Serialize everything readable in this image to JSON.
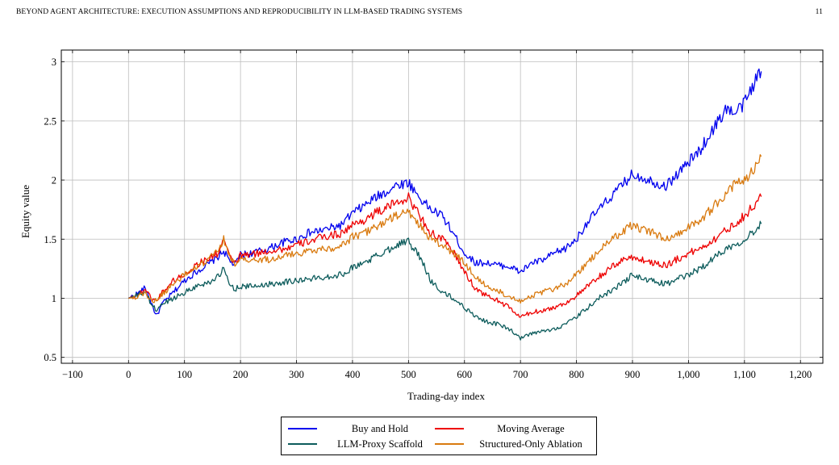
{
  "header": {
    "title": "BEYOND AGENT ARCHITECTURE: EXECUTION ASSUMPTIONS AND REPRODUCIBILITY IN LLM-BASED TRADING SYSTEMS",
    "page_number": "11"
  },
  "chart_data": {
    "type": "line",
    "title": "",
    "xlabel": "Trading-day index",
    "ylabel": "Equity value",
    "xlim": [
      -120,
      1240
    ],
    "ylim": [
      0.45,
      3.1
    ],
    "xticks": [
      -100,
      0,
      100,
      200,
      300,
      400,
      500,
      600,
      700,
      800,
      900,
      1000,
      1100,
      1200
    ],
    "xtick_labels": [
      "−100",
      "0",
      "100",
      "200",
      "300",
      "400",
      "500",
      "600",
      "700",
      "800",
      "900",
      "1,000",
      "1,100",
      "1,200"
    ],
    "yticks": [
      0.5,
      1,
      1.5,
      2,
      2.5,
      3
    ],
    "ytick_labels": [
      "0.5",
      "1",
      "1.5",
      "2",
      "2.5",
      "3"
    ],
    "grid": true,
    "legend_position": "bottom-outside",
    "series": [
      {
        "name": "Buy and Hold",
        "color": "#0000ee",
        "x": [
          0,
          20,
          30,
          40,
          50,
          60,
          80,
          100,
          120,
          140,
          160,
          170,
          180,
          190,
          200,
          220,
          250,
          280,
          300,
          320,
          350,
          380,
          400,
          420,
          440,
          460,
          480,
          500,
          520,
          540,
          560,
          580,
          600,
          620,
          640,
          660,
          680,
          700,
          720,
          740,
          760,
          780,
          800,
          820,
          840,
          860,
          880,
          900,
          920,
          940,
          960,
          980,
          1000,
          1020,
          1040,
          1060,
          1070,
          1080,
          1100,
          1110,
          1120,
          1130
        ],
        "y": [
          1.0,
          1.05,
          1.09,
          0.97,
          0.85,
          0.95,
          1.05,
          1.15,
          1.22,
          1.28,
          1.35,
          1.4,
          1.32,
          1.28,
          1.37,
          1.38,
          1.42,
          1.48,
          1.5,
          1.55,
          1.58,
          1.62,
          1.72,
          1.78,
          1.85,
          1.9,
          1.96,
          1.98,
          1.85,
          1.75,
          1.7,
          1.55,
          1.38,
          1.3,
          1.3,
          1.28,
          1.27,
          1.22,
          1.3,
          1.32,
          1.38,
          1.42,
          1.5,
          1.65,
          1.75,
          1.85,
          1.95,
          2.05,
          2.02,
          1.98,
          1.95,
          2.05,
          2.15,
          2.25,
          2.4,
          2.55,
          2.62,
          2.55,
          2.65,
          2.75,
          2.85,
          2.92
        ]
      },
      {
        "name": "Moving Average",
        "color": "#ee0000",
        "x": [
          0,
          20,
          30,
          40,
          50,
          60,
          80,
          100,
          120,
          140,
          160,
          170,
          180,
          190,
          200,
          220,
          250,
          280,
          300,
          320,
          350,
          380,
          400,
          420,
          440,
          460,
          480,
          500,
          520,
          540,
          560,
          580,
          600,
          620,
          640,
          660,
          680,
          700,
          720,
          740,
          760,
          780,
          800,
          820,
          840,
          860,
          880,
          900,
          920,
          940,
          960,
          980,
          1000,
          1020,
          1040,
          1060,
          1080,
          1100,
          1120,
          1130
        ],
        "y": [
          1.0,
          1.04,
          1.08,
          1.0,
          0.98,
          1.05,
          1.15,
          1.2,
          1.28,
          1.33,
          1.38,
          1.5,
          1.35,
          1.3,
          1.36,
          1.37,
          1.4,
          1.42,
          1.45,
          1.48,
          1.52,
          1.55,
          1.62,
          1.66,
          1.72,
          1.76,
          1.82,
          1.85,
          1.7,
          1.55,
          1.5,
          1.4,
          1.22,
          1.08,
          1.02,
          0.98,
          0.92,
          0.84,
          0.88,
          0.9,
          0.92,
          0.96,
          1.02,
          1.1,
          1.18,
          1.25,
          1.32,
          1.35,
          1.32,
          1.3,
          1.28,
          1.33,
          1.38,
          1.42,
          1.48,
          1.55,
          1.62,
          1.7,
          1.8,
          1.86
        ]
      },
      {
        "name": "LLM-Proxy Scaffold",
        "color": "#0d5c5c",
        "x": [
          0,
          20,
          30,
          40,
          50,
          60,
          80,
          100,
          120,
          140,
          160,
          170,
          180,
          190,
          200,
          220,
          250,
          280,
          300,
          320,
          350,
          380,
          400,
          420,
          440,
          460,
          480,
          500,
          520,
          540,
          560,
          580,
          600,
          620,
          640,
          660,
          680,
          700,
          720,
          740,
          760,
          780,
          800,
          820,
          840,
          860,
          880,
          900,
          920,
          940,
          960,
          980,
          1000,
          1020,
          1040,
          1060,
          1080,
          1100,
          1120,
          1130
        ],
        "y": [
          1.0,
          1.03,
          1.06,
          0.95,
          0.9,
          0.95,
          1.0,
          1.05,
          1.1,
          1.13,
          1.18,
          1.25,
          1.12,
          1.08,
          1.1,
          1.1,
          1.12,
          1.14,
          1.15,
          1.16,
          1.18,
          1.2,
          1.26,
          1.3,
          1.35,
          1.4,
          1.46,
          1.48,
          1.35,
          1.15,
          1.05,
          1.0,
          0.92,
          0.85,
          0.8,
          0.78,
          0.74,
          0.66,
          0.7,
          0.72,
          0.74,
          0.78,
          0.84,
          0.92,
          1.0,
          1.06,
          1.12,
          1.2,
          1.16,
          1.14,
          1.12,
          1.16,
          1.2,
          1.25,
          1.32,
          1.4,
          1.45,
          1.5,
          1.58,
          1.63
        ]
      },
      {
        "name": "Structured-Only Ablation",
        "color": "#d97a0f",
        "x": [
          0,
          20,
          30,
          40,
          50,
          60,
          80,
          100,
          120,
          140,
          160,
          170,
          180,
          190,
          200,
          220,
          250,
          280,
          300,
          320,
          350,
          380,
          400,
          420,
          440,
          460,
          480,
          500,
          520,
          540,
          560,
          580,
          600,
          620,
          640,
          660,
          680,
          700,
          720,
          740,
          760,
          780,
          800,
          820,
          840,
          860,
          880,
          900,
          920,
          940,
          960,
          980,
          1000,
          1020,
          1040,
          1060,
          1080,
          1100,
          1120,
          1130
        ],
        "y": [
          1.0,
          1.02,
          1.05,
          0.98,
          0.98,
          1.03,
          1.12,
          1.2,
          1.25,
          1.32,
          1.4,
          1.5,
          1.36,
          1.3,
          1.32,
          1.32,
          1.33,
          1.36,
          1.38,
          1.4,
          1.42,
          1.44,
          1.52,
          1.55,
          1.6,
          1.65,
          1.7,
          1.73,
          1.62,
          1.5,
          1.45,
          1.38,
          1.3,
          1.18,
          1.1,
          1.06,
          1.02,
          0.98,
          1.02,
          1.05,
          1.08,
          1.12,
          1.2,
          1.3,
          1.4,
          1.48,
          1.56,
          1.62,
          1.58,
          1.55,
          1.5,
          1.55,
          1.6,
          1.66,
          1.75,
          1.85,
          1.95,
          2.0,
          2.12,
          2.2
        ]
      }
    ]
  }
}
